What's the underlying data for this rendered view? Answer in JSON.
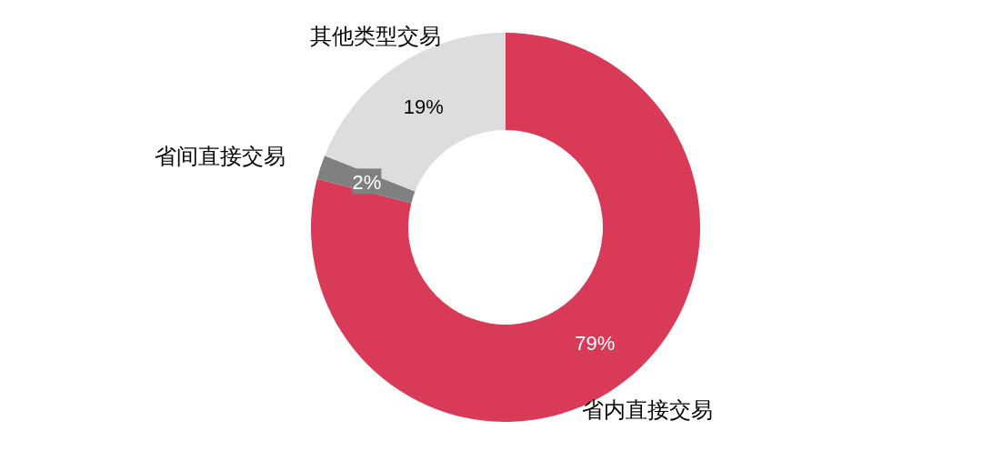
{
  "chart_data": {
    "type": "donut",
    "categories": [
      "省内直接交易",
      "省间直接交易",
      "其他类型交易"
    ],
    "values": [
      79,
      2,
      19
    ],
    "colors": [
      "#d93a57",
      "#808080",
      "#dddddd"
    ],
    "value_labels": [
      "79%",
      "2%",
      "19%"
    ],
    "legend": false
  }
}
